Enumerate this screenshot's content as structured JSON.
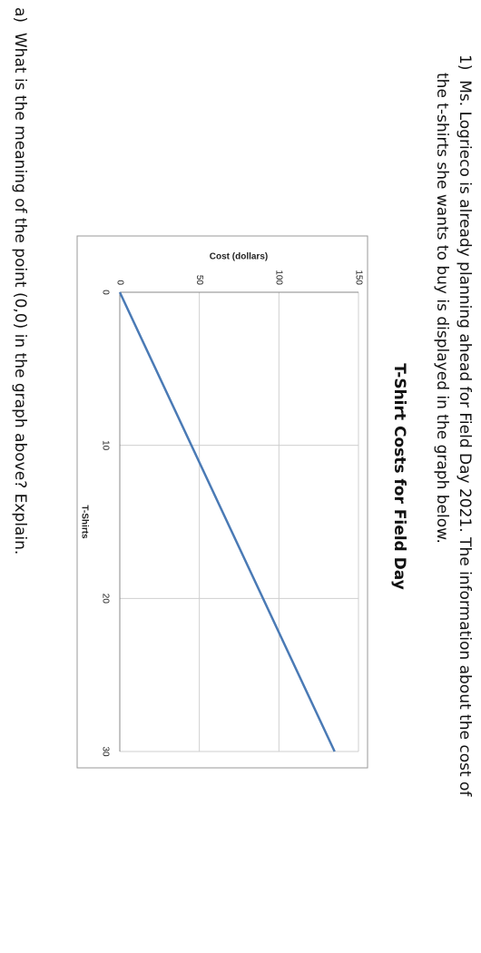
{
  "question": {
    "number": "1)",
    "text_line1": "Ms. Logrieco is already planning ahead for Field Day 2021.  The information about the cost of",
    "text_line2": "the t-shirts she wants to buy is displayed in the graph below."
  },
  "chart_data": {
    "type": "line",
    "title": "T-Shirt Costs for Field Day",
    "x_label": "T-Shirts",
    "y_label": "Cost (dollars)",
    "x": [
      0,
      30
    ],
    "series": [
      {
        "color": "#4a7ab5",
        "values": [
          0,
          135
        ]
      }
    ],
    "xlim": [
      0,
      30
    ],
    "xticks": [
      0,
      10,
      20,
      30
    ],
    "ylim": [
      0,
      150
    ],
    "yticks": [
      0,
      50,
      100,
      150
    ],
    "grid": true
  },
  "part_a": {
    "label": "a)",
    "text": "What is the meaning of the point (0,0) in the graph above? Explain."
  }
}
